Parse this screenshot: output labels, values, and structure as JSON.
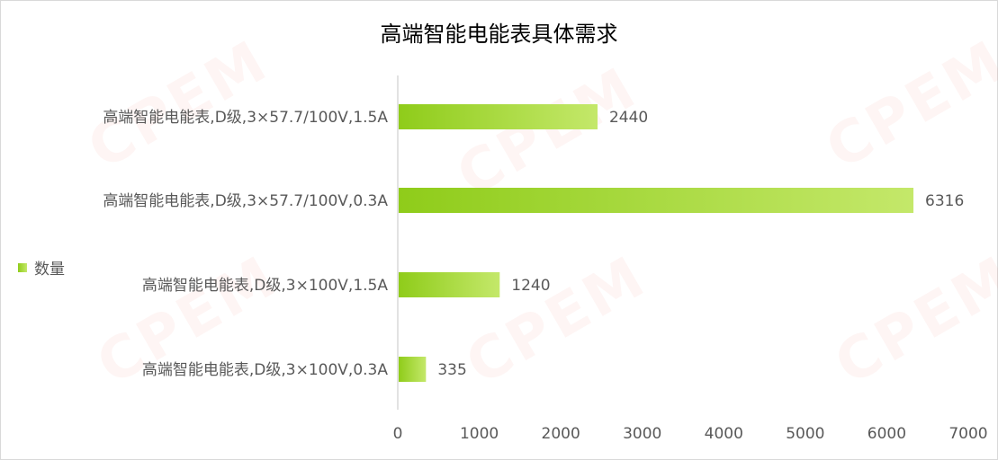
{
  "watermark": "CPEM",
  "colors": {
    "bar_start": "#8fcc1a",
    "bar_end": "#c4e86a",
    "text": "#595959",
    "axis": "#d9d9d9"
  },
  "chart_data": {
    "type": "bar",
    "orientation": "horizontal",
    "title": "高端智能电能表具体需求",
    "categories": [
      "高端智能电能表,D级,3×57.7/100V,1.5A",
      "高端智能电能表,D级,3×57.7/100V,0.3A",
      "高端智能电能表,D级,3×100V,1.5A",
      "高端智能电能表,D级,3×100V,0.3A"
    ],
    "series": [
      {
        "name": "数量",
        "values": [
          2440,
          6316,
          1240,
          335
        ]
      }
    ],
    "xlim": [
      0,
      7000
    ],
    "xticks": [
      "0",
      "1000",
      "2000",
      "3000",
      "4000",
      "5000",
      "6000",
      "7000"
    ],
    "grid": false,
    "legend": "left"
  }
}
